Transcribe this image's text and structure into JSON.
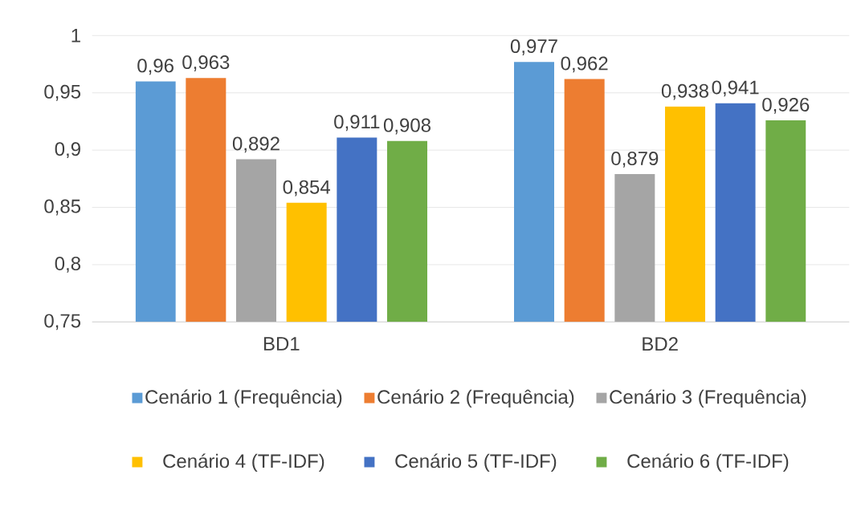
{
  "chart_data": {
    "type": "bar",
    "categories": [
      "BD1",
      "BD2"
    ],
    "series": [
      {
        "name": "Cenário 1 (Frequência)",
        "color": "#5b9bd5",
        "values": [
          0.96,
          0.977
        ],
        "value_labels": [
          "0,96",
          "0,977"
        ]
      },
      {
        "name": "Cenário 2 (Frequência)",
        "color": "#ed7d31",
        "values": [
          0.963,
          0.962
        ],
        "value_labels": [
          "0,963",
          "0,962"
        ]
      },
      {
        "name": "Cenário 3 (Frequência)",
        "color": "#a5a5a5",
        "values": [
          0.892,
          0.879
        ],
        "value_labels": [
          "0,892",
          "0,879"
        ]
      },
      {
        "name": "Cenário 4 (TF-IDF)",
        "color": "#ffc000",
        "values": [
          0.854,
          0.938
        ],
        "value_labels": [
          "0,854",
          "0,938"
        ]
      },
      {
        "name": "Cenário 5 (TF-IDF)",
        "color": "#4472c4",
        "values": [
          0.911,
          0.941
        ],
        "value_labels": [
          "0,911",
          "0,941"
        ]
      },
      {
        "name": "Cenário 6 (TF-IDF)",
        "color": "#70ad47",
        "values": [
          0.908,
          0.926
        ],
        "value_labels": [
          "0,908",
          "0,926"
        ]
      }
    ],
    "ylim": [
      0.75,
      1
    ],
    "yticks": [
      {
        "value": 0.75,
        "label": "0,75"
      },
      {
        "value": 0.8,
        "label": "0,8"
      },
      {
        "value": 0.85,
        "label": "0,85"
      },
      {
        "value": 0.9,
        "label": "0,9"
      },
      {
        "value": 0.95,
        "label": "0,95"
      },
      {
        "value": 1,
        "label": "1"
      }
    ],
    "grid": "y",
    "legend": "bottom"
  }
}
